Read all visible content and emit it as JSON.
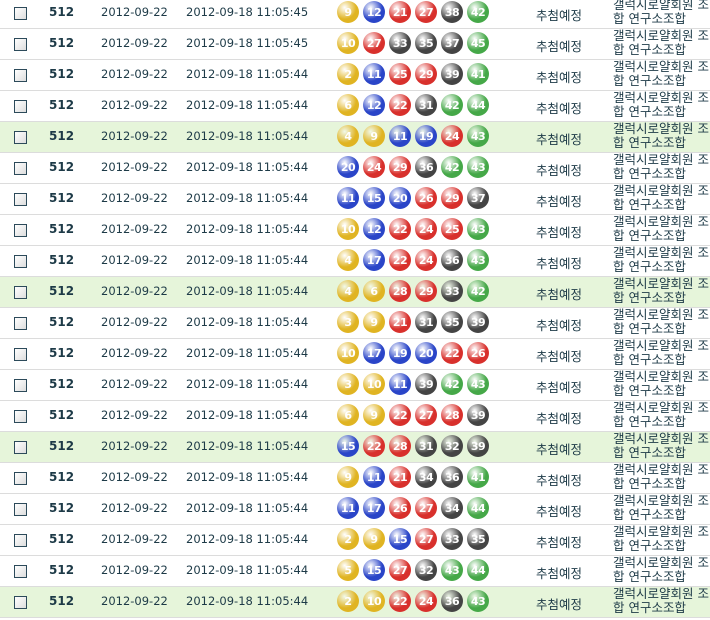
{
  "colors": {
    "yellow": "#e0b422",
    "blue": "#2a45c8",
    "red": "#d8302c",
    "gray": "#444444",
    "green": "#45a848",
    "highlight_row": "#e6f5da"
  },
  "ball_ranges": "1-10 yellow, 11-20 blue, 21-30 red, 31-40 gray, 41-45 green",
  "rows": [
    {
      "round": "512",
      "date": "2012-09-22",
      "datetime": "2012-09-18 11:05:45",
      "numbers": [
        9,
        12,
        21,
        27,
        38,
        42
      ],
      "status": "추첨예정",
      "name": "갤럭시로얄회원 조합 연구소조합",
      "highlighted": false
    },
    {
      "round": "512",
      "date": "2012-09-22",
      "datetime": "2012-09-18 11:05:45",
      "numbers": [
        10,
        27,
        33,
        35,
        37,
        45
      ],
      "status": "추첨예정",
      "name": "갤럭시로얄회원 조합 연구소조합",
      "highlighted": false
    },
    {
      "round": "512",
      "date": "2012-09-22",
      "datetime": "2012-09-18 11:05:44",
      "numbers": [
        2,
        11,
        25,
        29,
        39,
        41
      ],
      "status": "추첨예정",
      "name": "갤럭시로얄회원 조합 연구소조합",
      "highlighted": false
    },
    {
      "round": "512",
      "date": "2012-09-22",
      "datetime": "2012-09-18 11:05:44",
      "numbers": [
        6,
        12,
        22,
        31,
        42,
        44
      ],
      "status": "추첨예정",
      "name": "갤럭시로얄회원 조합 연구소조합",
      "highlighted": false
    },
    {
      "round": "512",
      "date": "2012-09-22",
      "datetime": "2012-09-18 11:05:44",
      "numbers": [
        4,
        9,
        11,
        19,
        24,
        43
      ],
      "status": "추첨예정",
      "name": "갤럭시로얄회원 조합 연구소조합",
      "highlighted": true
    },
    {
      "round": "512",
      "date": "2012-09-22",
      "datetime": "2012-09-18 11:05:44",
      "numbers": [
        20,
        24,
        29,
        36,
        42,
        43
      ],
      "status": "추첨예정",
      "name": "갤럭시로얄회원 조합 연구소조합",
      "highlighted": false
    },
    {
      "round": "512",
      "date": "2012-09-22",
      "datetime": "2012-09-18 11:05:44",
      "numbers": [
        11,
        15,
        20,
        26,
        29,
        37
      ],
      "status": "추첨예정",
      "name": "갤럭시로얄회원 조합 연구소조합",
      "highlighted": false
    },
    {
      "round": "512",
      "date": "2012-09-22",
      "datetime": "2012-09-18 11:05:44",
      "numbers": [
        10,
        12,
        22,
        24,
        25,
        43
      ],
      "status": "추첨예정",
      "name": "갤럭시로얄회원 조합 연구소조합",
      "highlighted": false
    },
    {
      "round": "512",
      "date": "2012-09-22",
      "datetime": "2012-09-18 11:05:44",
      "numbers": [
        4,
        17,
        22,
        24,
        36,
        43
      ],
      "status": "추첨예정",
      "name": "갤럭시로얄회원 조합 연구소조합",
      "highlighted": false
    },
    {
      "round": "512",
      "date": "2012-09-22",
      "datetime": "2012-09-18 11:05:44",
      "numbers": [
        4,
        6,
        28,
        29,
        33,
        42
      ],
      "status": "추첨예정",
      "name": "갤럭시로얄회원 조합 연구소조합",
      "highlighted": true
    },
    {
      "round": "512",
      "date": "2012-09-22",
      "datetime": "2012-09-18 11:05:44",
      "numbers": [
        3,
        9,
        21,
        31,
        35,
        39
      ],
      "status": "추첨예정",
      "name": "갤럭시로얄회원 조합 연구소조합",
      "highlighted": false
    },
    {
      "round": "512",
      "date": "2012-09-22",
      "datetime": "2012-09-18 11:05:44",
      "numbers": [
        10,
        17,
        19,
        20,
        22,
        26
      ],
      "status": "추첨예정",
      "name": "갤럭시로얄회원 조합 연구소조합",
      "highlighted": false
    },
    {
      "round": "512",
      "date": "2012-09-22",
      "datetime": "2012-09-18 11:05:44",
      "numbers": [
        3,
        10,
        11,
        39,
        42,
        43
      ],
      "status": "추첨예정",
      "name": "갤럭시로얄회원 조합 연구소조합",
      "highlighted": false
    },
    {
      "round": "512",
      "date": "2012-09-22",
      "datetime": "2012-09-18 11:05:44",
      "numbers": [
        6,
        9,
        22,
        27,
        28,
        39
      ],
      "status": "추첨예정",
      "name": "갤럭시로얄회원 조합 연구소조합",
      "highlighted": false
    },
    {
      "round": "512",
      "date": "2012-09-22",
      "datetime": "2012-09-18 11:05:44",
      "numbers": [
        15,
        22,
        28,
        31,
        32,
        39
      ],
      "status": "추첨예정",
      "name": "갤럭시로얄회원 조합 연구소조합",
      "highlighted": true
    },
    {
      "round": "512",
      "date": "2012-09-22",
      "datetime": "2012-09-18 11:05:44",
      "numbers": [
        9,
        11,
        21,
        34,
        36,
        41
      ],
      "status": "추첨예정",
      "name": "갤럭시로얄회원 조합 연구소조합",
      "highlighted": false
    },
    {
      "round": "512",
      "date": "2012-09-22",
      "datetime": "2012-09-18 11:05:44",
      "numbers": [
        11,
        17,
        26,
        27,
        34,
        44
      ],
      "status": "추첨예정",
      "name": "갤럭시로얄회원 조합 연구소조합",
      "highlighted": false
    },
    {
      "round": "512",
      "date": "2012-09-22",
      "datetime": "2012-09-18 11:05:44",
      "numbers": [
        2,
        9,
        15,
        27,
        33,
        35
      ],
      "status": "추첨예정",
      "name": "갤럭시로얄회원 조합 연구소조합",
      "highlighted": false
    },
    {
      "round": "512",
      "date": "2012-09-22",
      "datetime": "2012-09-18 11:05:44",
      "numbers": [
        5,
        15,
        27,
        32,
        43,
        44
      ],
      "status": "추첨예정",
      "name": "갤럭시로얄회원 조합 연구소조합",
      "highlighted": false
    },
    {
      "round": "512",
      "date": "2012-09-22",
      "datetime": "2012-09-18 11:05:44",
      "numbers": [
        2,
        10,
        22,
        24,
        36,
        43
      ],
      "status": "추첨예정",
      "name": "갤럭시로얄회원 조합 연구소조합",
      "highlighted": true
    }
  ]
}
